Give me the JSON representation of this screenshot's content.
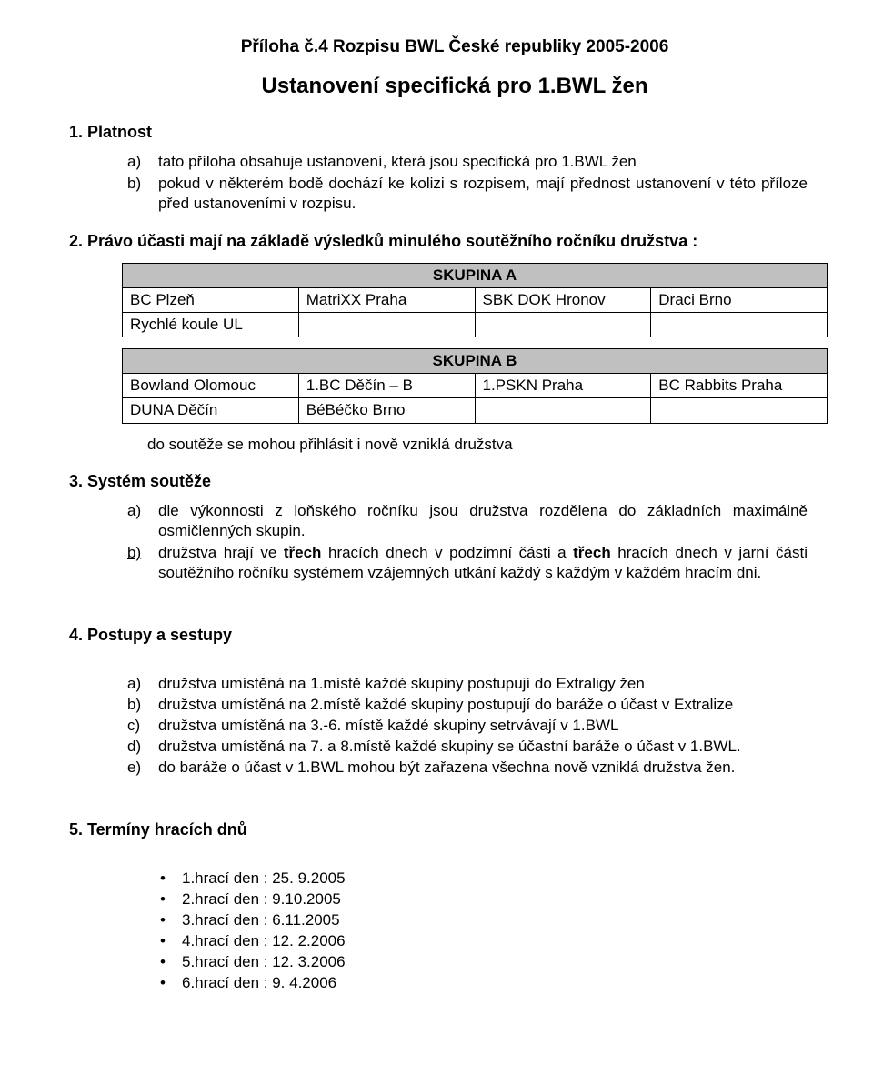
{
  "header": {
    "title": "Příloha č.4 Rozpisu BWL České republiky 2005-2006",
    "subtitle": "Ustanovení specifická pro 1.BWL žen"
  },
  "sec1": {
    "heading": "1.  Platnost",
    "a_marker": "a)",
    "a": "tato příloha obsahuje ustanovení, která jsou specifická pro 1.BWL žen",
    "b_marker": "b)",
    "b": "pokud v některém bodě dochází ke kolizi s rozpisem, mají přednost ustanovení v této příloze před ustanoveními v rozpisu."
  },
  "sec2": {
    "heading": "2.  Právo účasti mají na základě výsledků minulého soutěžního ročníku družstva :",
    "tableA": {
      "title": "SKUPINA A",
      "rows": [
        [
          "BC Plzeň",
          "MatriXX Praha",
          "SBK DOK Hronov",
          "Draci Brno"
        ],
        [
          "Rychlé koule UL",
          "",
          "",
          ""
        ]
      ]
    },
    "tableB": {
      "title": "SKUPINA B",
      "rows": [
        [
          "Bowland Olomouc",
          "1.BC Děčín – B",
          "1.PSKN Praha",
          "BC Rabbits Praha"
        ],
        [
          "DUNA Děčín",
          "BéBéčko Brno",
          "",
          ""
        ]
      ]
    },
    "note": "do soutěže se mohou přihlásit i nově vzniklá družstva"
  },
  "sec3": {
    "heading": "3.  Systém soutěže",
    "a_marker": "a)",
    "a": "dle výkonnosti z loňského ročníku jsou družstva rozdělena do základních maximálně osmičlenných skupin.",
    "b_marker": "b)",
    "b_pre": "družstva hrají ve ",
    "b_bold1": "třech",
    "b_mid1": " hracích dnech v podzimní části a ",
    "b_bold2": "třech",
    "b_mid2": " hracích dnech v jarní části soutěžního ročníku systémem vzájemných utkání  každý s každým v každém hracím dni."
  },
  "sec4": {
    "heading": "4.  Postupy a sestupy",
    "a_marker": "a)",
    "a": "družstva umístěná na 1.místě každé skupiny postupují do Extraligy žen",
    "b_marker": "b)",
    "b": "družstva umístěná na 2.místě každé skupiny postupují do baráže o účast v Extralize",
    "c_marker": "c)",
    "c": "družstva umístěná na 3.-6. místě každé skupiny setrvávají v 1.BWL",
    "d_marker": "d)",
    "d": "družstva umístěná na 7. a 8.místě každé skupiny se účastní baráže o účast v 1.BWL.",
    "e_marker": "e)",
    "e": "do baráže o účast v 1.BWL mohou být zařazena všechna nově vzniklá družstva žen."
  },
  "sec5": {
    "heading": "5.   Termíny hracích dnů",
    "items": [
      "1.hrací den : 25.  9.2005",
      "2.hrací den :   9.10.2005",
      "3.hrací den :   6.11.2005",
      "4.hrací den : 12.  2.2006",
      "5.hrací den : 12.  3.2006",
      "6.hrací den :   9.  4.2006"
    ]
  }
}
